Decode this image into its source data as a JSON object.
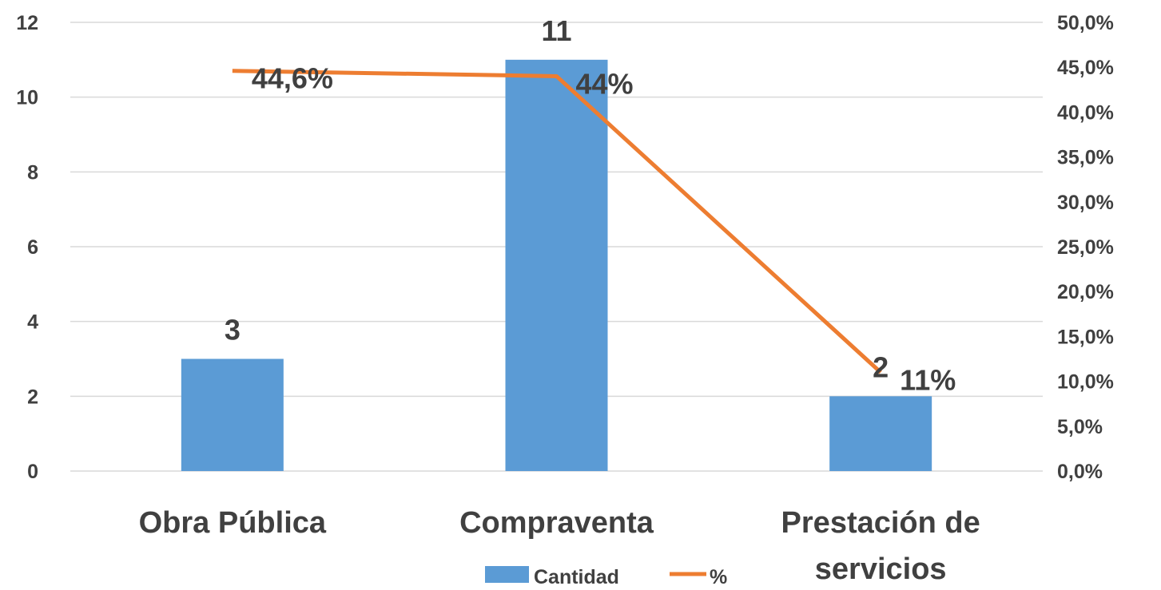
{
  "chart_data": {
    "type": "bar",
    "categories": [
      "Obra Pública",
      "Compraventa",
      "Prestación de servicios"
    ],
    "category_label_lines": [
      [
        "Obra Pública"
      ],
      [
        "Compraventa"
      ],
      [
        "Prestación de",
        "servicios"
      ]
    ],
    "series": [
      {
        "name": "Cantidad",
        "type": "bar",
        "axis": "left",
        "values": [
          3,
          11,
          2
        ],
        "data_labels": [
          "3",
          "11",
          "2"
        ],
        "color": "#5b9bd5"
      },
      {
        "name": "%",
        "type": "line",
        "axis": "right",
        "values": [
          44.6,
          44.0,
          11.0
        ],
        "data_labels": [
          "44,6%",
          "44%",
          "11%"
        ],
        "color": "#ed7d31"
      }
    ],
    "y_left": {
      "min": 0,
      "max": 12,
      "step": 2,
      "ticks": [
        "0",
        "2",
        "4",
        "6",
        "8",
        "10",
        "12"
      ]
    },
    "y_right": {
      "min": 0,
      "max": 50,
      "step": 5,
      "ticks": [
        "0,0%",
        "5,0%",
        "10,0%",
        "15,0%",
        "20,0%",
        "25,0%",
        "30,0%",
        "35,0%",
        "40,0%",
        "45,0%",
        "50,0%"
      ]
    },
    "grid": true,
    "legend_position": "bottom",
    "title": "",
    "xlabel": "",
    "ylabel": ""
  },
  "colors": {
    "bar": "#5b9bd5",
    "line": "#ed7d31",
    "grid": "#d9d9d9",
    "text": "#404040",
    "background": "#ffffff"
  }
}
